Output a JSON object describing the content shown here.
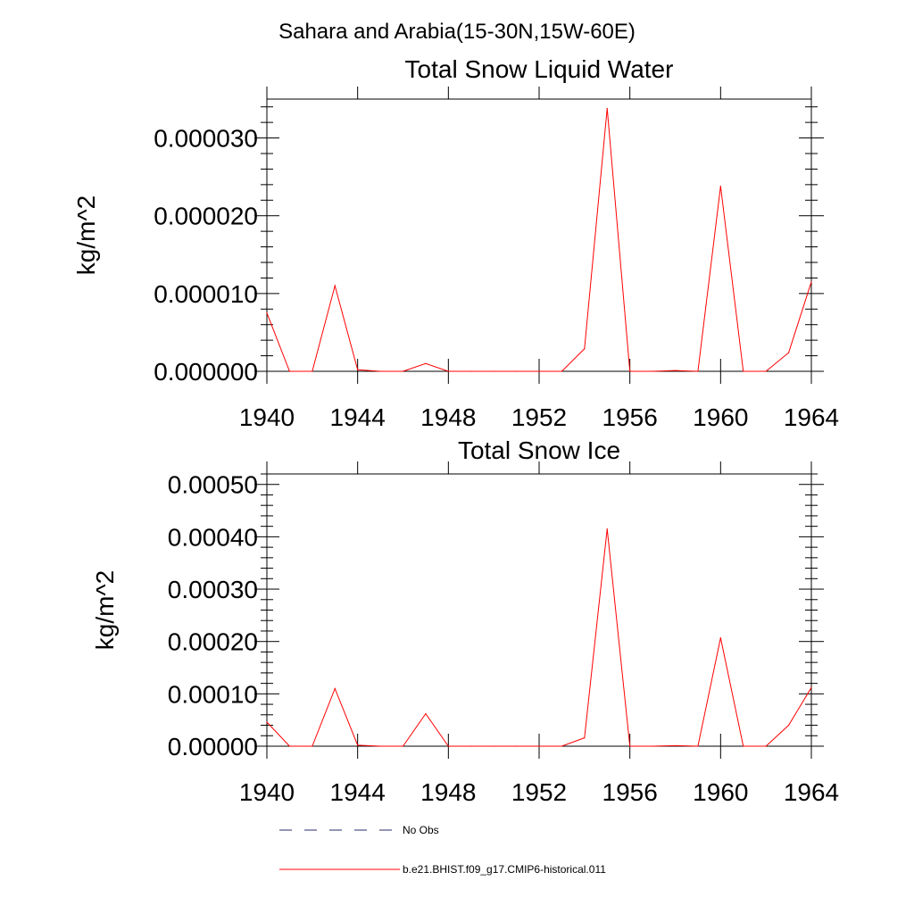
{
  "figure": {
    "suptitle": "Sahara and Arabia(15-30N,15W-60E)"
  },
  "chart_data": [
    {
      "type": "line",
      "title": "Total Snow Liquid Water",
      "xlabel": "",
      "ylabel": "kg/m^2",
      "xlim": [
        1940,
        1964
      ],
      "ylim": [
        0,
        3.5e-05
      ],
      "x_ticks": [
        1940,
        1944,
        1948,
        1952,
        1956,
        1960,
        1964
      ],
      "x_tick_labels": [
        "1940",
        "1944",
        "1948",
        "1952",
        "1956",
        "1960",
        "1964"
      ],
      "y_ticks": [
        0,
        1e-05,
        2e-05,
        3e-05
      ],
      "y_tick_labels": [
        "0.000000",
        "0.000010",
        "0.000020",
        "0.000030"
      ],
      "x": [
        1940,
        1941,
        1942,
        1943,
        1944,
        1945,
        1946,
        1947,
        1948,
        1949,
        1950,
        1951,
        1952,
        1953,
        1954,
        1955,
        1956,
        1957,
        1958,
        1959,
        1960,
        1961,
        1962,
        1963,
        1964
      ],
      "series": [
        {
          "name": "b.e21.BHIST.f09_g17.CMIP6-historical.011",
          "color": "#ff0000",
          "values": [
            7.5e-06,
            0.0,
            0.0,
            1.1e-05,
            2e-07,
            0.0,
            0.0,
            1e-06,
            0.0,
            0.0,
            0.0,
            0.0,
            0.0,
            0.0,
            2.9e-06,
            3.38e-05,
            0.0,
            0.0,
            1e-07,
            0.0,
            2.38e-05,
            0.0,
            0.0,
            2.4e-06,
            1.15e-05
          ]
        }
      ]
    },
    {
      "type": "line",
      "title": "Total Snow Ice",
      "xlabel": "",
      "ylabel": "kg/m^2",
      "xlim": [
        1940,
        1964
      ],
      "ylim": [
        0,
        0.00052
      ],
      "x_ticks": [
        1940,
        1944,
        1948,
        1952,
        1956,
        1960,
        1964
      ],
      "x_tick_labels": [
        "1940",
        "1944",
        "1948",
        "1952",
        "1956",
        "1960",
        "1964"
      ],
      "y_ticks": [
        0,
        0.0001,
        0.0002,
        0.0003,
        0.0004,
        0.0005
      ],
      "y_tick_labels": [
        "0.00000",
        "0.00010",
        "0.00020",
        "0.00030",
        "0.00040",
        "0.00050"
      ],
      "x": [
        1940,
        1941,
        1942,
        1943,
        1944,
        1945,
        1946,
        1947,
        1948,
        1949,
        1950,
        1951,
        1952,
        1953,
        1954,
        1955,
        1956,
        1957,
        1958,
        1959,
        1960,
        1961,
        1962,
        1963,
        1964
      ],
      "series": [
        {
          "name": "b.e21.BHIST.f09_g17.CMIP6-historical.011",
          "color": "#ff0000",
          "values": [
            4.6e-05,
            0.0,
            0.0,
            0.00011,
            2e-06,
            0.0,
            0.0,
            6.2e-05,
            0.0,
            0.0,
            0.0,
            0.0,
            0.0,
            0.0,
            1.6e-05,
            0.000415,
            0.0,
            0.0,
            1e-06,
            0.0,
            0.000207,
            0.0,
            0.0,
            4e-05,
            0.000112
          ]
        }
      ]
    }
  ],
  "legend": {
    "entries": [
      {
        "label": "No Obs",
        "style": "dashed",
        "color": "#2b2b6b"
      },
      {
        "label": "b.e21.BHIST.f09_g17.CMIP6-historical.011",
        "style": "solid",
        "color": "#ff0000"
      }
    ]
  }
}
